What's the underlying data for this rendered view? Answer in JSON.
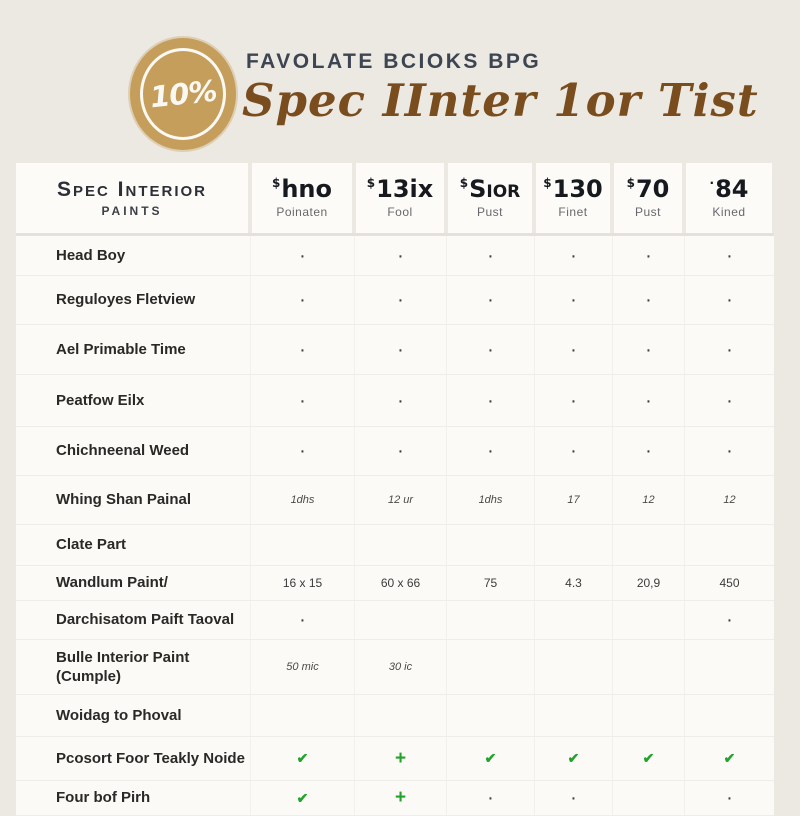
{
  "header": {
    "badge_text": "10%",
    "eyebrow": "FAVOLATE BCIOKS BPG",
    "title": "Spec IInter 1or Tist"
  },
  "colors": {
    "badge_gold": "#C59E5C",
    "eyebrow_navy": "#3D4452",
    "title_brown": "#7A4D1F",
    "check_green": "#23A32D",
    "page_beige": "#ECE9E2"
  },
  "table": {
    "corner": {
      "line1": "Spec Interior",
      "line2": "PAINTS"
    },
    "columns": [
      {
        "sup": "$",
        "main": "hno",
        "sub": "Poinaten"
      },
      {
        "sup": "$",
        "main": "13ix",
        "sub": "Fool"
      },
      {
        "sup": "$",
        "main": "Sior",
        "sub": "Pust"
      },
      {
        "sup": "$",
        "main": "130",
        "sub": "Finet"
      },
      {
        "sup": "$",
        "main": "70",
        "sub": "Pust"
      },
      {
        "sup": "·",
        "main": "84",
        "sub": "Kined"
      }
    ],
    "rows": [
      {
        "label": "Head Boy",
        "kind": "dots",
        "cells": [
          "·",
          "·",
          "·",
          "·",
          "·",
          "·"
        ]
      },
      {
        "label": "Reguloyes Fletview",
        "kind": "dots",
        "cells": [
          "·",
          "·",
          "·",
          "·",
          "·",
          "·"
        ]
      },
      {
        "label": "Ael Primable Time",
        "kind": "dots",
        "cells": [
          "·",
          "·",
          "·",
          "·",
          "·",
          "·"
        ]
      },
      {
        "label": "Peatfow Eilx",
        "kind": "dots",
        "cells": [
          "·",
          "·",
          "·",
          "·",
          "·",
          "·"
        ]
      },
      {
        "label": "Chichneenal Weed",
        "kind": "dots",
        "cells": [
          "·",
          "·",
          "·",
          "·",
          "·",
          "·"
        ]
      },
      {
        "label": "Whing Shan Painal",
        "kind": "values-italic",
        "cells": [
          "1dhs",
          "12 ur",
          "1dhs",
          "17",
          "12",
          "12"
        ]
      },
      {
        "label": "Clate Part",
        "kind": "empty",
        "cells": [
          "",
          "",
          "",
          "",
          "",
          ""
        ]
      },
      {
        "label": "Wandlum Paint/",
        "kind": "values",
        "cells": [
          "16 x 15",
          "60 x 66",
          "75",
          "4.3",
          "20,9",
          "450"
        ]
      },
      {
        "label": "Darchisatom Paift Taoval",
        "kind": "dots",
        "cells": [
          "·",
          "",
          "",
          "",
          "",
          "·"
        ]
      },
      {
        "label": "Bulle Interior Paint\n(Cumple)",
        "kind": "values-italic",
        "cells": [
          "50 mic",
          "30 ic",
          "",
          "",
          "",
          ""
        ]
      },
      {
        "label": "Woidag to Phoval",
        "kind": "empty",
        "cells": [
          "",
          "",
          "",
          "",
          "",
          ""
        ]
      },
      {
        "label": "Pcosort Foor Teakly Noide",
        "kind": "marks",
        "cells": [
          "✔",
          "+",
          "✔",
          "✔",
          "✔",
          "✔"
        ]
      },
      {
        "label": "Four bof Pirh",
        "kind": "marks",
        "cells": [
          "✔",
          "+",
          "·",
          "·",
          "",
          "·"
        ]
      }
    ]
  },
  "chart_data": {
    "type": "table",
    "title": "Spec IInter 1or Tist",
    "subtitle": "FAVOLATE BCIOKS BPG",
    "badge": "10%",
    "column_headers": [
      "Spec Interior PAINTS",
      "$hno Poinaten",
      "$13ix Fool",
      "$Sior Pust",
      "$130 Finet",
      "$70 Pust",
      "84 Kined"
    ],
    "rows": [
      [
        "Head Boy",
        "·",
        "·",
        "·",
        "·",
        "·",
        "·"
      ],
      [
        "Reguloyes Fletview",
        "·",
        "·",
        "·",
        "·",
        "·",
        "·"
      ],
      [
        "Ael Primable Time",
        "·",
        "·",
        "·",
        "·",
        "·",
        "·"
      ],
      [
        "Peatfow Eilx",
        "·",
        "·",
        "·",
        "·",
        "·",
        "·"
      ],
      [
        "Chichneenal Weed",
        "·",
        "·",
        "·",
        "·",
        "·",
        "·"
      ],
      [
        "Whing Shan Painal",
        "1dhs",
        "12 ur",
        "1dhs",
        "17",
        "12",
        "12"
      ],
      [
        "Clate Part",
        "",
        "",
        "",
        "",
        "",
        ""
      ],
      [
        "Wandlum Paint/",
        "16 x 15",
        "60 x 66",
        "75",
        "4.3",
        "20,9",
        "450"
      ],
      [
        "Darchisatom Paift Taoval",
        "·",
        "",
        "",
        "",
        "",
        "·"
      ],
      [
        "Bulle Interior Paint (Cumple)",
        "50 mic",
        "30 ic",
        "",
        "",
        "",
        ""
      ],
      [
        "Woidag to Phoval",
        "",
        "",
        "",
        "",
        "",
        ""
      ],
      [
        "Pcosort Foor Teakly Noide",
        "✔",
        "+",
        "✔",
        "✔",
        "✔",
        "✔"
      ],
      [
        "Four bof Pirh",
        "✔",
        "+",
        "·",
        "·",
        "",
        "·"
      ]
    ]
  }
}
